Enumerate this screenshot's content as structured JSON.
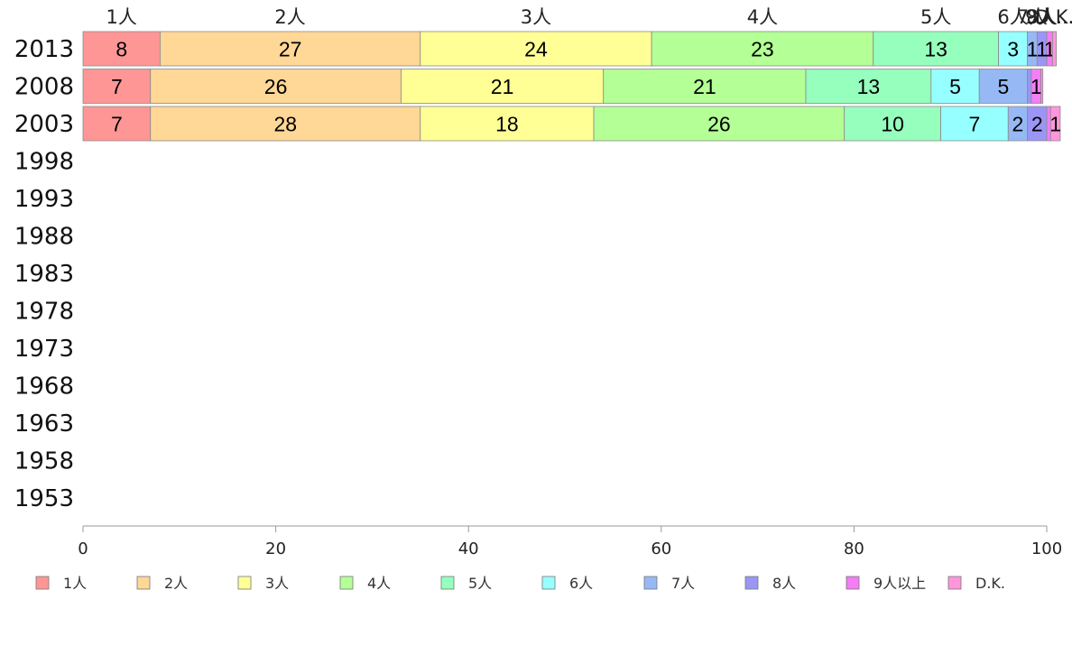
{
  "chart_data": {
    "type": "bar",
    "orientation": "horizontal",
    "stacked": true,
    "title": "",
    "xlabel": "",
    "ylabel": "",
    "xlim": [
      0,
      100
    ],
    "x_ticks": [
      "0",
      "20",
      "40",
      "60",
      "80",
      "100"
    ],
    "categories": [
      "2013",
      "2008",
      "2003",
      "1998",
      "1993",
      "1988",
      "1983",
      "1978",
      "1973",
      "1968",
      "1963",
      "1958",
      "1953"
    ],
    "series": [
      {
        "name": "1人",
        "color": "#ff9696",
        "values": [
          8,
          7,
          7,
          null,
          null,
          null,
          null,
          null,
          null,
          null,
          null,
          null,
          null
        ],
        "labels": [
          "8",
          "7",
          "7"
        ]
      },
      {
        "name": "2人",
        "color": "#ffd796",
        "values": [
          27,
          26,
          28,
          null,
          null,
          null,
          null,
          null,
          null,
          null,
          null,
          null,
          null
        ],
        "labels": [
          "27",
          "26",
          "28"
        ]
      },
      {
        "name": "3人",
        "color": "#ffff96",
        "values": [
          24,
          21,
          18,
          null,
          null,
          null,
          null,
          null,
          null,
          null,
          null,
          null,
          null
        ],
        "labels": [
          "24",
          "21",
          "18"
        ]
      },
      {
        "name": "4人",
        "color": "#b4ff96",
        "values": [
          23,
          21,
          26,
          null,
          null,
          null,
          null,
          null,
          null,
          null,
          null,
          null,
          null
        ],
        "labels": [
          "23",
          "21",
          "26"
        ]
      },
      {
        "name": "5人",
        "color": "#96ffbe",
        "values": [
          13,
          13,
          10,
          null,
          null,
          null,
          null,
          null,
          null,
          null,
          null,
          null,
          null
        ],
        "labels": [
          "13",
          "13",
          "10"
        ]
      },
      {
        "name": "6人",
        "color": "#96ffff",
        "values": [
          3,
          5,
          7,
          null,
          null,
          null,
          null,
          null,
          null,
          null,
          null,
          null,
          null
        ],
        "labels": [
          "3",
          "5",
          "7"
        ]
      },
      {
        "name": "7人",
        "color": "#96b9f5",
        "values": [
          1,
          5,
          2,
          null,
          null,
          null,
          null,
          null,
          null,
          null,
          null,
          null,
          null
        ],
        "labels": [
          "1",
          "5",
          "2"
        ]
      },
      {
        "name": "8人",
        "color": "#9b96f5",
        "values": [
          1,
          0.4,
          2,
          null,
          null,
          null,
          null,
          null,
          null,
          null,
          null,
          null,
          null
        ],
        "labels": [
          "1",
          "",
          "2"
        ]
      },
      {
        "name": "9人以上",
        "color": "#f57df5",
        "values": [
          0.6,
          1,
          0.4,
          null,
          null,
          null,
          null,
          null,
          null,
          null,
          null,
          null,
          null
        ],
        "labels": [
          "1",
          "1",
          ""
        ]
      },
      {
        "name": "D.K.",
        "color": "#ff96dc",
        "values": [
          0.4,
          0.2,
          1,
          null,
          null,
          null,
          null,
          null,
          null,
          null,
          null,
          null,
          null
        ],
        "labels": [
          "",
          "",
          "1"
        ]
      }
    ],
    "top_labels": [
      "1人",
      "2人",
      "3人",
      "4人",
      "5人",
      "6人",
      "7人",
      "8人",
      "9人...",
      "D.K."
    ],
    "legend_position": "bottom",
    "grid": false
  }
}
